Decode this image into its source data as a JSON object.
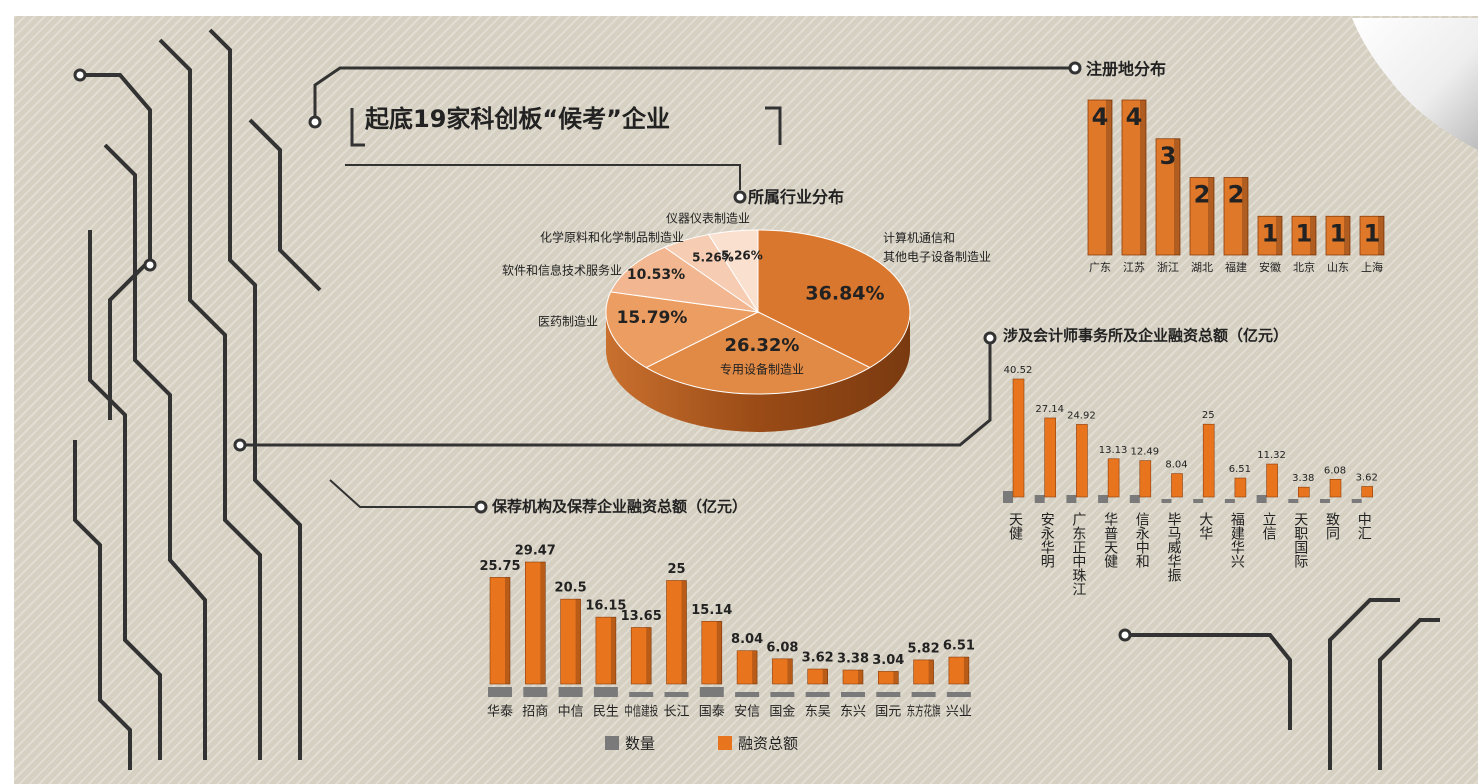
{
  "title": "起底19家科创板“候考”企业",
  "chart_data": [
    {
      "type": "pie",
      "title": "所属行业分布",
      "categories": [
        "计算机通信和\n其他电子设备制造业",
        "专用设备制造业",
        "医药制造业",
        "软件和信息技术服务业",
        "化学原料和化学制品制造业",
        "仪器仪表制造业"
      ],
      "values": [
        36.84,
        26.32,
        15.79,
        10.53,
        5.26,
        5.26
      ],
      "value_labels": [
        "36.84%",
        "26.32%",
        "15.79%",
        "10.53%",
        "5.26%",
        "5.26%"
      ],
      "colors": [
        "#d9772e",
        "#e08a45",
        "#ec9e62",
        "#f2b790",
        "#f6cdb2",
        "#f9e0cf"
      ]
    },
    {
      "type": "bar",
      "title": "注册地分布",
      "categories": [
        "广东",
        "江苏",
        "浙江",
        "湖北",
        "福建",
        "安徽",
        "北京",
        "山东",
        "上海"
      ],
      "values": [
        4,
        4,
        3,
        2,
        2,
        1,
        1,
        1,
        1
      ],
      "color": "#e0782a"
    },
    {
      "type": "bar",
      "title": "涉及会计师事务所及企业融资总额（亿元）",
      "categories": [
        "天健",
        "安永华明",
        "广东正中珠江",
        "华普天健",
        "信永中和",
        "毕马威华振",
        "大华",
        "福建华兴",
        "立信",
        "天职国际",
        "致同",
        "中汇"
      ],
      "values": [
        40.52,
        27.14,
        24.92,
        13.13,
        12.49,
        8.04,
        25,
        6.51,
        11.32,
        3.38,
        6.08,
        3.62
      ],
      "color": "#e8741e",
      "counts": [
        3,
        2,
        2,
        2,
        2,
        1,
        1,
        1,
        2,
        1,
        1,
        1
      ],
      "count_color": "#7a7a7a"
    },
    {
      "type": "bar",
      "title": "保荐机构及保荐企业融资总额（亿元）",
      "categories": [
        "华泰",
        "招商",
        "中信",
        "民生",
        "中信建投",
        "长江",
        "国泰",
        "安信",
        "国金",
        "东吴",
        "东兴",
        "国元",
        "东方花旗",
        "兴业"
      ],
      "series": [
        {
          "name": "数量",
          "color": "#7a7a7a",
          "values": [
            2,
            2,
            2,
            2,
            1,
            1,
            2,
            1,
            1,
            1,
            1,
            1,
            1,
            1
          ]
        },
        {
          "name": "融资总额",
          "color": "#e8741e",
          "values": [
            25.75,
            29.47,
            20.5,
            16.15,
            13.65,
            25,
            15.14,
            8.04,
            6.08,
            3.62,
            3.38,
            3.04,
            5.82,
            6.51
          ]
        }
      ]
    }
  ]
}
